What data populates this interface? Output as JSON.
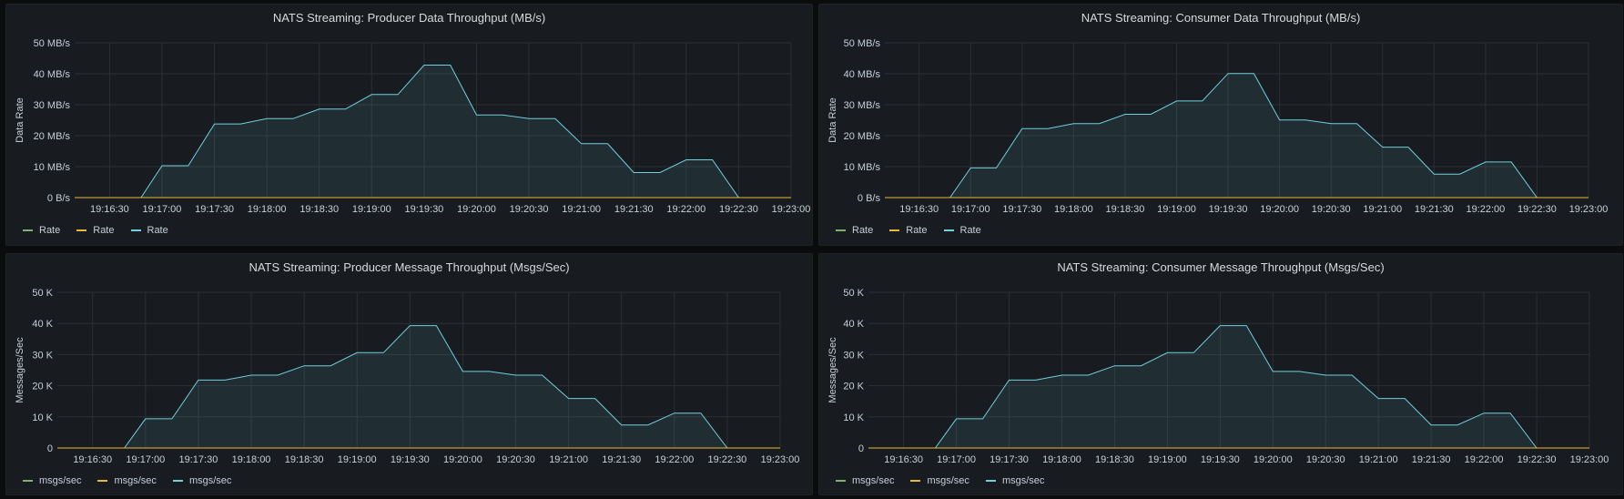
{
  "chart_data": [
    {
      "type": "area",
      "title": "NATS Streaming: Producer Data Throughput (MB/s)",
      "ylabel": "Data Rate",
      "ylim": [
        0,
        50
      ],
      "yticks": [
        "0 B/s",
        "10 MB/s",
        "20 MB/s",
        "30 MB/s",
        "40 MB/s",
        "50 MB/s"
      ],
      "xticks": [
        "19:16:30",
        "19:17:00",
        "19:17:30",
        "19:18:00",
        "19:18:30",
        "19:19:00",
        "19:19:30",
        "19:20:00",
        "19:20:30",
        "19:21:00",
        "19:21:30",
        "19:22:00",
        "19:22:30",
        "19:23:00"
      ],
      "legend": "bottom-left",
      "series": [
        {
          "name": "Rate",
          "color": "#7eb26d",
          "x": [
            "19:16:10",
            "19:23:00"
          ],
          "values": [
            0,
            0
          ]
        },
        {
          "name": "Rate",
          "color": "#eab839",
          "x": [
            "19:16:10",
            "19:23:00"
          ],
          "values": [
            0,
            0
          ]
        },
        {
          "name": "Rate",
          "color": "#6ed0e0",
          "fill": true,
          "x": [
            "19:16:10",
            "19:16:48",
            "19:17:00",
            "19:17:15",
            "19:17:30",
            "19:17:45",
            "19:18:00",
            "19:18:15",
            "19:18:30",
            "19:18:45",
            "19:19:00",
            "19:19:15",
            "19:19:30",
            "19:19:45",
            "19:20:00",
            "19:20:15",
            "19:20:30",
            "19:20:45",
            "19:21:00",
            "19:21:15",
            "19:21:30",
            "19:21:45",
            "19:22:00",
            "19:22:15",
            "19:22:30",
            "19:22:45",
            "19:23:00"
          ],
          "values": [
            0,
            0,
            10.3,
            10.3,
            23.8,
            23.8,
            25.5,
            25.5,
            28.6,
            28.6,
            33.3,
            33.3,
            42.8,
            42.8,
            26.7,
            26.7,
            25.5,
            25.5,
            17.4,
            17.4,
            8.1,
            8.1,
            12.2,
            12.2,
            0,
            0,
            0
          ]
        }
      ]
    },
    {
      "type": "area",
      "title": "NATS Streaming: Consumer Data Throughput (MB/s)",
      "ylabel": "Data Rate",
      "ylim": [
        0,
        50
      ],
      "yticks": [
        "0 B/s",
        "10 MB/s",
        "20 MB/s",
        "30 MB/s",
        "40 MB/s",
        "50 MB/s"
      ],
      "xticks": [
        "19:16:30",
        "19:17:00",
        "19:17:30",
        "19:18:00",
        "19:18:30",
        "19:19:00",
        "19:19:30",
        "19:20:00",
        "19:20:30",
        "19:21:00",
        "19:21:30",
        "19:22:00",
        "19:22:30",
        "19:23:00"
      ],
      "legend": "bottom-left",
      "series": [
        {
          "name": "Rate",
          "color": "#7eb26d",
          "x": [
            "19:16:10",
            "19:23:00"
          ],
          "values": [
            0,
            0
          ]
        },
        {
          "name": "Rate",
          "color": "#eab839",
          "x": [
            "19:16:10",
            "19:23:00"
          ],
          "values": [
            0,
            0
          ]
        },
        {
          "name": "Rate",
          "color": "#6ed0e0",
          "fill": true,
          "x": [
            "19:16:10",
            "19:16:48",
            "19:17:00",
            "19:17:15",
            "19:17:30",
            "19:17:45",
            "19:18:00",
            "19:18:15",
            "19:18:30",
            "19:18:45",
            "19:19:00",
            "19:19:15",
            "19:19:30",
            "19:19:45",
            "19:20:00",
            "19:20:15",
            "19:20:30",
            "19:20:45",
            "19:21:00",
            "19:21:15",
            "19:21:30",
            "19:21:45",
            "19:22:00",
            "19:22:15",
            "19:22:30",
            "19:22:45",
            "19:23:00"
          ],
          "values": [
            0,
            0,
            9.6,
            9.6,
            22.3,
            22.3,
            23.9,
            23.9,
            26.9,
            26.9,
            31.2,
            31.2,
            40.1,
            40.1,
            25.1,
            25.1,
            23.9,
            23.9,
            16.3,
            16.3,
            7.6,
            7.6,
            11.5,
            11.5,
            0,
            0,
            0
          ]
        }
      ]
    },
    {
      "type": "area",
      "title": "NATS Streaming: Producer Message Throughput (Msgs/Sec)",
      "ylabel": "Messages/Sec",
      "ylim": [
        0,
        50000
      ],
      "yticks": [
        "0",
        "10 K",
        "20 K",
        "30 K",
        "40 K",
        "50 K"
      ],
      "xticks": [
        "19:16:30",
        "19:17:00",
        "19:17:30",
        "19:18:00",
        "19:18:30",
        "19:19:00",
        "19:19:30",
        "19:20:00",
        "19:20:30",
        "19:21:00",
        "19:21:30",
        "19:22:00",
        "19:22:30",
        "19:23:00"
      ],
      "legend": "bottom-left",
      "series": [
        {
          "name": "msgs/sec",
          "color": "#7eb26d",
          "x": [
            "19:16:10",
            "19:23:00"
          ],
          "values": [
            0,
            0
          ]
        },
        {
          "name": "msgs/sec",
          "color": "#eab839",
          "x": [
            "19:16:10",
            "19:23:00"
          ],
          "values": [
            0,
            0
          ]
        },
        {
          "name": "msgs/sec",
          "color": "#6ed0e0",
          "fill": true,
          "x": [
            "19:16:10",
            "19:16:48",
            "19:17:00",
            "19:17:15",
            "19:17:30",
            "19:17:45",
            "19:18:00",
            "19:18:15",
            "19:18:30",
            "19:18:45",
            "19:19:00",
            "19:19:15",
            "19:19:30",
            "19:19:45",
            "19:20:00",
            "19:20:15",
            "19:20:30",
            "19:20:45",
            "19:21:00",
            "19:21:15",
            "19:21:30",
            "19:21:45",
            "19:22:00",
            "19:22:15",
            "19:22:30",
            "19:22:45",
            "19:23:00"
          ],
          "values": [
            0,
            0,
            9400,
            9400,
            21800,
            21800,
            23400,
            23400,
            26400,
            26400,
            30600,
            30600,
            39300,
            39300,
            24600,
            24600,
            23400,
            23400,
            15900,
            15900,
            7400,
            7400,
            11200,
            11200,
            0,
            0,
            0
          ]
        }
      ]
    },
    {
      "type": "area",
      "title": "NATS Streaming: Consumer Message Throughput (Msgs/Sec)",
      "ylabel": "Messages/Sec",
      "ylim": [
        0,
        50000
      ],
      "yticks": [
        "0",
        "10 K",
        "20 K",
        "30 K",
        "40 K",
        "50 K"
      ],
      "xticks": [
        "19:16:30",
        "19:17:00",
        "19:17:30",
        "19:18:00",
        "19:18:30",
        "19:19:00",
        "19:19:30",
        "19:20:00",
        "19:20:30",
        "19:21:00",
        "19:21:30",
        "19:22:00",
        "19:22:30",
        "19:23:00"
      ],
      "legend": "bottom-left",
      "series": [
        {
          "name": "msgs/sec",
          "color": "#7eb26d",
          "x": [
            "19:16:10",
            "19:23:00"
          ],
          "values": [
            0,
            0
          ]
        },
        {
          "name": "msgs/sec",
          "color": "#eab839",
          "x": [
            "19:16:10",
            "19:23:00"
          ],
          "values": [
            0,
            0
          ]
        },
        {
          "name": "msgs/sec",
          "color": "#6ed0e0",
          "fill": true,
          "x": [
            "19:16:10",
            "19:16:48",
            "19:17:00",
            "19:17:15",
            "19:17:30",
            "19:17:45",
            "19:18:00",
            "19:18:15",
            "19:18:30",
            "19:18:45",
            "19:19:00",
            "19:19:15",
            "19:19:30",
            "19:19:45",
            "19:20:00",
            "19:20:15",
            "19:20:30",
            "19:20:45",
            "19:21:00",
            "19:21:15",
            "19:21:30",
            "19:21:45",
            "19:22:00",
            "19:22:15",
            "19:22:30",
            "19:22:45",
            "19:23:00"
          ],
          "values": [
            0,
            0,
            9400,
            9400,
            21800,
            21800,
            23400,
            23400,
            26400,
            26400,
            30600,
            30600,
            39300,
            39300,
            24600,
            24600,
            23400,
            23400,
            15900,
            15900,
            7400,
            7400,
            11200,
            11200,
            0,
            0,
            0
          ]
        }
      ]
    }
  ]
}
